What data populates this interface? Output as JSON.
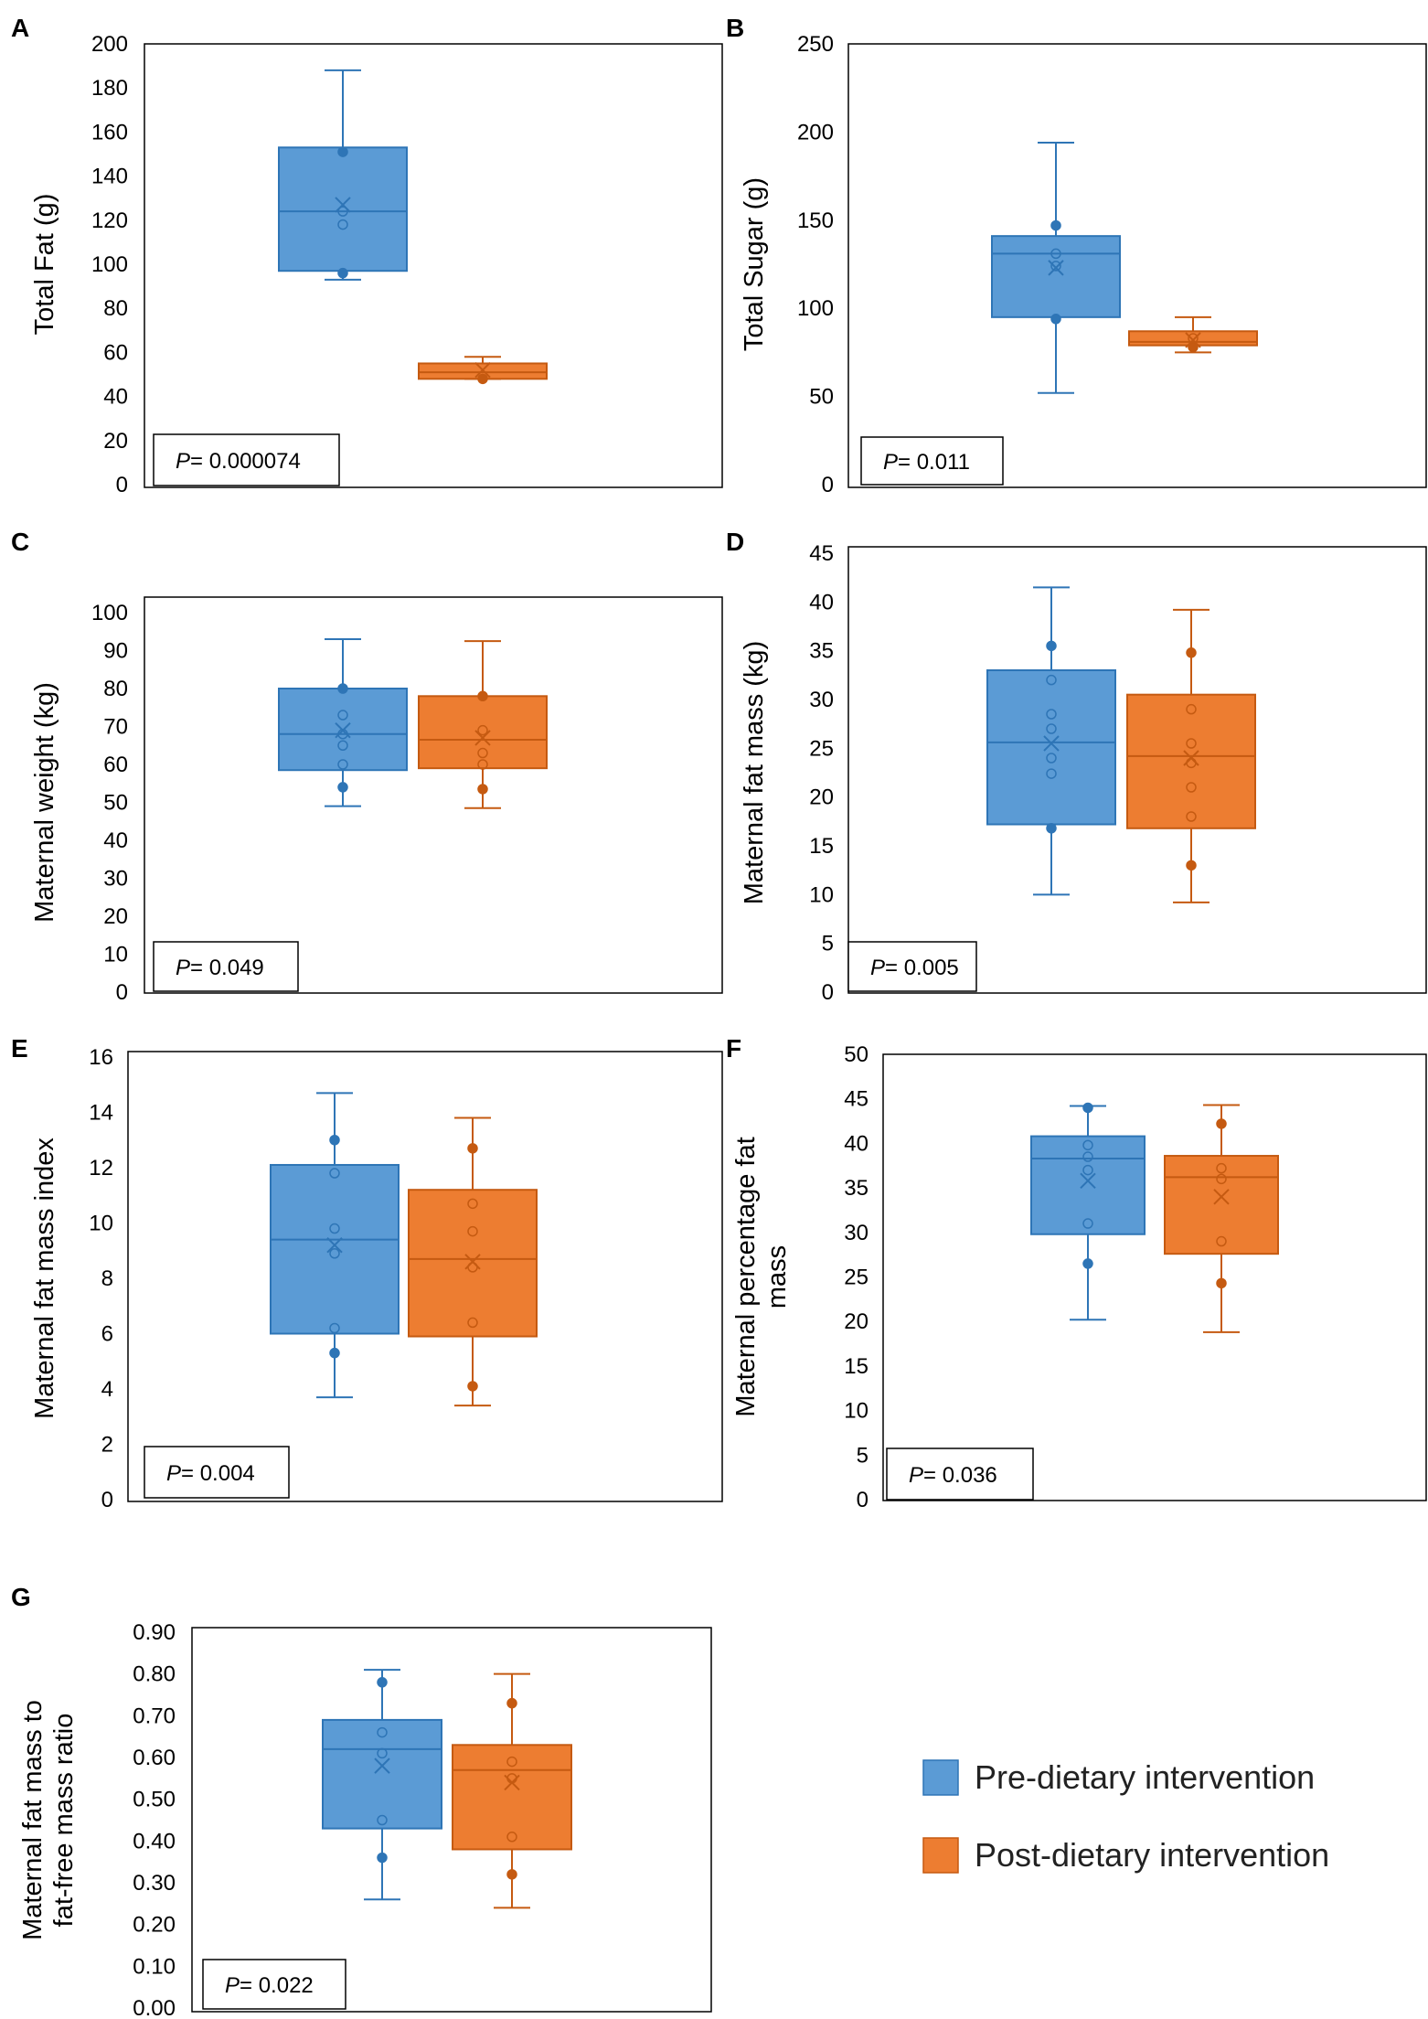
{
  "colors": {
    "pre_fill": "#5B9BD5",
    "pre_stroke": "#2E75B6",
    "post_fill": "#ED7D31",
    "post_stroke": "#C55A11",
    "frame": "#000000"
  },
  "legend": {
    "items": [
      {
        "label": "Pre-dietary intervention",
        "color": "#5B9BD5"
      },
      {
        "label": "Post-dietary intervention",
        "color": "#ED7D31"
      }
    ]
  },
  "chart_data": [
    {
      "id": "A",
      "type": "box",
      "ylabel": [
        "Total Fat (g)"
      ],
      "ylim": [
        0,
        200
      ],
      "ticks": [
        0,
        20,
        40,
        60,
        80,
        100,
        120,
        140,
        160,
        180,
        200
      ],
      "decimals": 0,
      "pvalue": {
        "prefix": "P",
        "text": "= 0.000074"
      },
      "series": [
        {
          "name": "Pre-dietary intervention",
          "min": 93,
          "q1": 97,
          "median": 124,
          "q3": 153,
          "max": 188,
          "mean": 127,
          "points": [
            96,
            118,
            124,
            151
          ],
          "outer": [
            96,
            151
          ]
        },
        {
          "name": "Post-dietary intervention",
          "min": 48,
          "q1": 48,
          "median": 51,
          "q3": 55,
          "max": 58,
          "mean": 52,
          "points": [
            48
          ],
          "outer": [
            48
          ]
        }
      ]
    },
    {
      "id": "B",
      "type": "box",
      "ylabel": [
        "Total Sugar (g)"
      ],
      "ylim": [
        0,
        250
      ],
      "ticks": [
        0,
        50,
        100,
        150,
        200,
        250
      ],
      "decimals": 0,
      "pvalue": {
        "prefix": "P",
        "text": "= 0.011"
      },
      "series": [
        {
          "name": "Pre-dietary intervention",
          "min": 52,
          "q1": 95,
          "median": 131,
          "q3": 141,
          "max": 194,
          "mean": 123,
          "points": [
            94,
            124,
            131,
            147
          ],
          "outer": [
            94,
            147
          ]
        },
        {
          "name": "Post-dietary intervention",
          "min": 75,
          "q1": 79,
          "median": 81,
          "q3": 87,
          "max": 95,
          "mean": 82,
          "points": [
            78,
            83
          ],
          "outer": [
            78
          ]
        }
      ]
    },
    {
      "id": "C",
      "type": "box",
      "ylabel": [
        "Maternal weight (kg)"
      ],
      "ylim": [
        0,
        100
      ],
      "ticks": [
        0,
        10,
        20,
        30,
        40,
        50,
        60,
        70,
        80,
        90,
        100
      ],
      "decimals": 0,
      "pvalue": {
        "prefix": "P",
        "text": "= 0.049"
      },
      "series": [
        {
          "name": "Pre-dietary intervention",
          "min": 49,
          "q1": 58.5,
          "median": 68,
          "q3": 80,
          "max": 93,
          "mean": 69,
          "points": [
            54,
            60,
            65,
            68,
            73,
            80
          ],
          "outer": [
            54,
            80
          ]
        },
        {
          "name": "Post-dietary intervention",
          "min": 48.5,
          "q1": 59,
          "median": 66.5,
          "q3": 78,
          "max": 92.5,
          "mean": 67,
          "points": [
            53.5,
            60,
            63,
            69,
            78
          ],
          "outer": [
            53.5,
            78
          ]
        }
      ]
    },
    {
      "id": "D",
      "type": "box",
      "ylabel": [
        "Maternal fat mass (kg)"
      ],
      "ylim": [
        0,
        45
      ],
      "ticks": [
        0,
        5,
        10,
        15,
        20,
        25,
        30,
        35,
        40,
        45
      ],
      "decimals": 0,
      "pvalue": {
        "prefix": "P",
        "text": "= 0.005"
      },
      "series": [
        {
          "name": "Pre-dietary intervention",
          "min": 10,
          "q1": 17.2,
          "median": 25.6,
          "q3": 33,
          "max": 41.5,
          "mean": 25.5,
          "points": [
            16.8,
            22.4,
            24,
            27,
            28.5,
            32,
            35.5
          ],
          "outer": [
            16.8,
            35.5
          ]
        },
        {
          "name": "Post-dietary intervention",
          "min": 9.2,
          "q1": 16.8,
          "median": 24.2,
          "q3": 30.5,
          "max": 39.2,
          "mean": 24,
          "points": [
            13,
            18,
            21,
            23.5,
            25.5,
            29,
            34.8
          ],
          "outer": [
            13,
            34.8
          ]
        }
      ]
    },
    {
      "id": "E",
      "type": "box",
      "ylabel": [
        "Maternal fat mass index"
      ],
      "ylim": [
        0,
        16
      ],
      "ticks": [
        0,
        2,
        4,
        6,
        8,
        10,
        12,
        14,
        16
      ],
      "decimals": 0,
      "pvalue": {
        "prefix": "P",
        "text": "= 0.004"
      },
      "series": [
        {
          "name": "Pre-dietary intervention",
          "min": 3.7,
          "q1": 6,
          "median": 9.4,
          "q3": 12.1,
          "max": 14.7,
          "mean": 9.2,
          "points": [
            5.3,
            6.2,
            8.9,
            9.8,
            11.8,
            13
          ],
          "outer": [
            5.3,
            13
          ]
        },
        {
          "name": "Post-dietary intervention",
          "min": 3.4,
          "q1": 5.9,
          "median": 8.7,
          "q3": 11.2,
          "max": 13.8,
          "mean": 8.6,
          "points": [
            4.1,
            6.4,
            8.4,
            9.7,
            10.7,
            12.7
          ],
          "outer": [
            4.1,
            12.7
          ]
        }
      ]
    },
    {
      "id": "F",
      "type": "box",
      "ylabel": [
        "Maternal percentage fat",
        "mass"
      ],
      "ylim": [
        0,
        50
      ],
      "ticks": [
        0,
        5,
        10,
        15,
        20,
        25,
        30,
        35,
        40,
        45,
        50
      ],
      "decimals": 0,
      "pvalue": {
        "prefix": "P",
        "text": "= 0.036"
      },
      "series": [
        {
          "name": "Pre-dietary intervention",
          "min": 20.2,
          "q1": 29.8,
          "median": 38.3,
          "q3": 40.8,
          "max": 44.2,
          "mean": 35.8,
          "points": [
            26.5,
            31,
            37,
            38.5,
            39.8,
            44
          ],
          "outer": [
            26.5,
            44
          ]
        },
        {
          "name": "Post-dietary intervention",
          "min": 18.8,
          "q1": 27.6,
          "median": 36.2,
          "q3": 38.6,
          "max": 44.3,
          "mean": 34,
          "points": [
            24.3,
            29,
            36,
            37.2,
            42.2
          ],
          "outer": [
            24.3,
            42.2
          ]
        }
      ]
    },
    {
      "id": "G",
      "type": "box",
      "ylabel": [
        "Maternal fat mass to",
        "fat-free mass ratio"
      ],
      "ylim": [
        0,
        0.9
      ],
      "ticks": [
        0,
        0.1,
        0.2,
        0.3,
        0.4,
        0.5,
        0.6,
        0.7,
        0.8,
        0.9
      ],
      "decimals": 2,
      "pvalue": {
        "prefix": "P",
        "text": "= 0.022"
      },
      "series": [
        {
          "name": "Pre-dietary intervention",
          "min": 0.26,
          "q1": 0.43,
          "median": 0.62,
          "q3": 0.69,
          "max": 0.81,
          "mean": 0.58,
          "points": [
            0.36,
            0.45,
            0.61,
            0.66,
            0.78
          ],
          "outer": [
            0.36,
            0.78
          ]
        },
        {
          "name": "Post-dietary intervention",
          "min": 0.24,
          "q1": 0.38,
          "median": 0.57,
          "q3": 0.63,
          "max": 0.8,
          "mean": 0.54,
          "points": [
            0.32,
            0.41,
            0.55,
            0.59,
            0.73
          ],
          "outer": [
            0.32,
            0.73
          ]
        }
      ]
    }
  ]
}
